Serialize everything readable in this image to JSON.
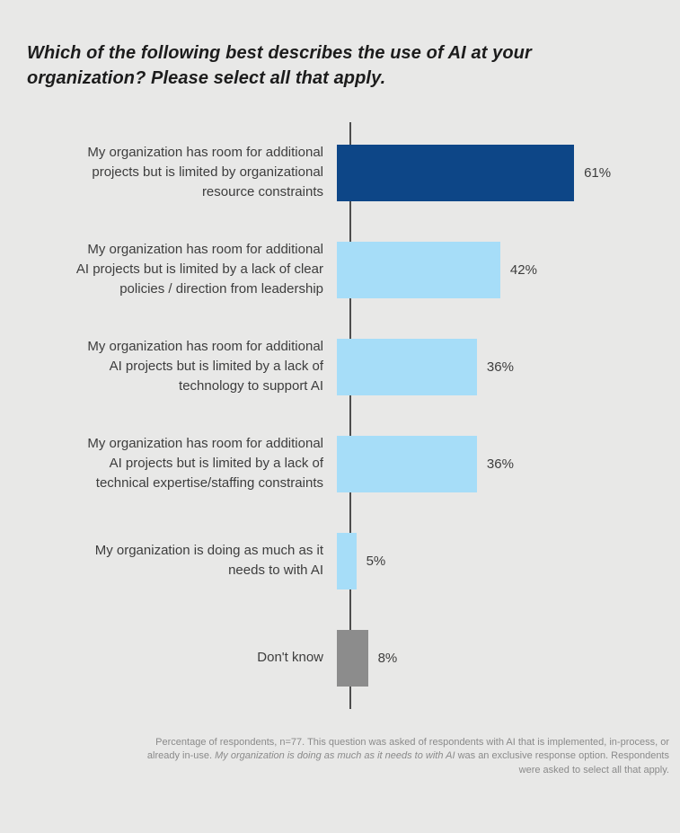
{
  "title": "Which of the following best describes the use of AI at your organization? Please select all that apply.",
  "chart_data": {
    "type": "bar",
    "orientation": "horizontal",
    "title": "Which of the following best describes the use of AI at your organization? Please select all that apply.",
    "categories": [
      "My organization has room for additional\nprojects but is limited by organizational\nresource constraints",
      "My organization has room for additional\nAI projects but is limited by a lack of clear\npolicies / direction from leadership",
      "My organization has room for additional\nAI projects but is limited by a lack of\ntechnology to support AI",
      "My organization has room for additional\nAI projects but is limited by a lack of\ntechnical expertise/staffing constraints",
      "My organization is doing as much as it\nneeds to with AI",
      "Don't know"
    ],
    "values": [
      61,
      42,
      36,
      36,
      5,
      8
    ],
    "value_labels": [
      "61%",
      "42%",
      "36%",
      "36%",
      "5%",
      "8%"
    ],
    "bar_colors": [
      "#0d4687",
      "#a6ddf8",
      "#a6ddf8",
      "#a6ddf8",
      "#a6ddf8",
      "#8c8c8c"
    ],
    "xlabel": "",
    "ylabel": "",
    "xlim": [
      0,
      70
    ],
    "grid": false,
    "legend": "none",
    "unit": "percent of respondents",
    "n": 77
  },
  "footer": {
    "prefix": "Percentage of respondents, n=77. This question was asked of respondents with AI that is implemented, in-process, or already in-use. ",
    "italic": "My organization is doing as much as it needs to with AI",
    "suffix": " was an exclusive response option. Respondents were asked to select all that apply."
  },
  "colors": {
    "background": "#e8e8e7",
    "highlight_bar": "#0d4687",
    "regular_bar": "#a6ddf8",
    "dont_know_bar": "#8c8c8c",
    "axis_line": "#4d4d4d",
    "label_text": "#3d3d3d",
    "title_text": "#1c1c1c",
    "footer_text": "#8a8a8a"
  }
}
